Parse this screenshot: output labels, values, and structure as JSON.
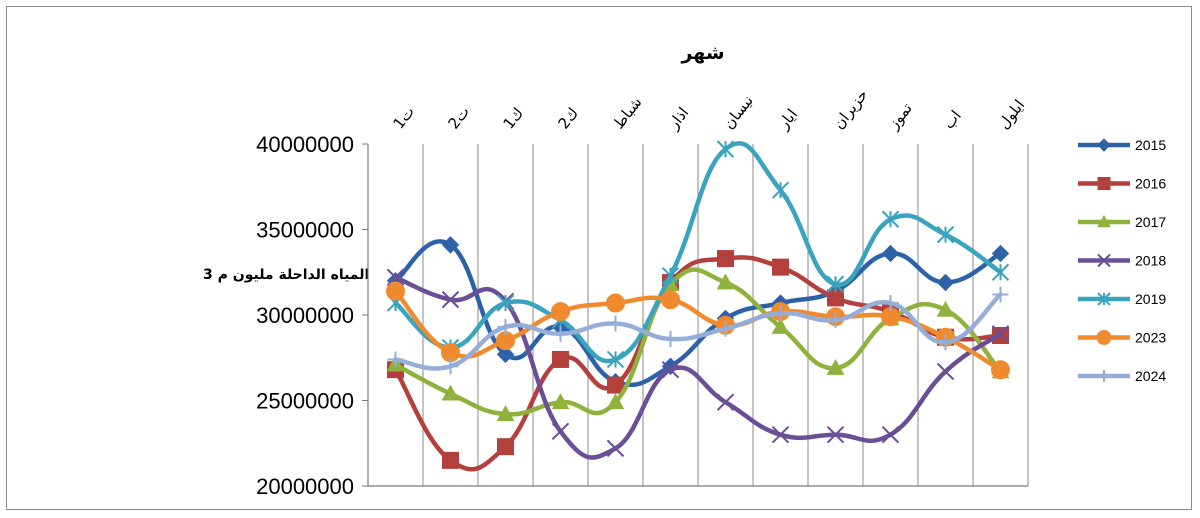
{
  "chart_data": {
    "type": "line",
    "title": "شهر",
    "ylabel": "المياه الداحلة مليون م 3",
    "categories": [
      "ت1",
      "ت2",
      "ك1",
      "ك2",
      "شباط",
      "اذار",
      "نيسان",
      "ايار",
      "حزيران",
      "تموز",
      "اب",
      "ايلول"
    ],
    "ylim": [
      20000000,
      40000000
    ],
    "yticks": [
      20000000,
      25000000,
      30000000,
      35000000,
      40000000
    ],
    "grid": "vertical",
    "legend_position": "right",
    "series": [
      {
        "name": "2015",
        "color": "#2e62a8",
        "marker": "diamond",
        "values": [
          32000000,
          34100000,
          27700000,
          29300000,
          26100000,
          27000000,
          29800000,
          30700000,
          31400000,
          33600000,
          31900000,
          33600000
        ]
      },
      {
        "name": "2016",
        "color": "#b3403d",
        "marker": "square",
        "values": [
          26800000,
          21500000,
          22300000,
          27400000,
          25900000,
          31900000,
          33300000,
          32800000,
          31000000,
          30200000,
          28700000,
          28800000
        ]
      },
      {
        "name": "2017",
        "color": "#8eb23c",
        "marker": "triangle",
        "values": [
          27100000,
          25400000,
          24200000,
          24900000,
          24900000,
          31800000,
          31900000,
          29300000,
          26900000,
          29800000,
          30300000,
          26700000
        ]
      },
      {
        "name": "2018",
        "color": "#6b4f96",
        "marker": "x",
        "values": [
          32200000,
          30900000,
          30800000,
          23200000,
          22200000,
          26800000,
          24900000,
          23000000,
          23000000,
          23000000,
          26700000,
          28900000
        ]
      },
      {
        "name": "2019",
        "color": "#3aa3bd",
        "marker": "star",
        "values": [
          30700000,
          28100000,
          30700000,
          29700000,
          27400000,
          32300000,
          39700000,
          37300000,
          31800000,
          35600000,
          34700000,
          32500000
        ]
      },
      {
        "name": "2023",
        "color": "#ef8a2e",
        "marker": "circle",
        "values": [
          31400000,
          27800000,
          28500000,
          30200000,
          30700000,
          30900000,
          29400000,
          30200000,
          29900000,
          29900000,
          28700000,
          26800000
        ]
      },
      {
        "name": "2024",
        "color": "#95aed8",
        "marker": "plus",
        "values": [
          27400000,
          27000000,
          29300000,
          28900000,
          29500000,
          28600000,
          29200000,
          30100000,
          29700000,
          30700000,
          28400000,
          31200000
        ]
      }
    ]
  }
}
